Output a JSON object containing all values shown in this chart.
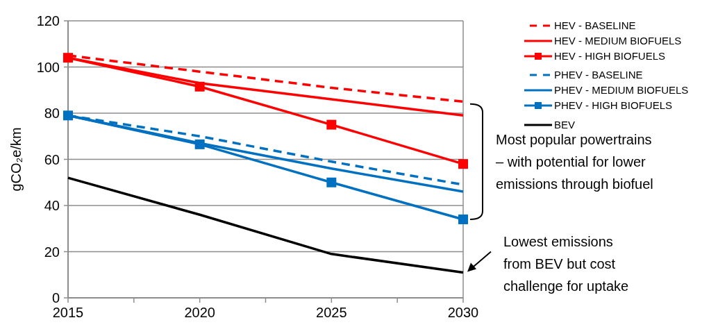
{
  "chart_data": {
    "type": "line",
    "ylabel": "gCO₂e/km",
    "x": [
      2015,
      2020,
      2025,
      2030
    ],
    "xlim": [
      2015,
      2030
    ],
    "xticks": [
      2015,
      {
        "value": 2017.5,
        "label": null
      },
      2020,
      {
        "value": 2022.5,
        "label": null
      },
      2025,
      {
        "value": 2027.5,
        "label": null
      },
      2030
    ],
    "ylim": [
      0,
      120
    ],
    "yticks": [
      0,
      20,
      40,
      60,
      80,
      100,
      120
    ],
    "grid": "y",
    "legend": "top right",
    "series": [
      {
        "name": "HEV - BASELINE",
        "color": "#ff0000",
        "line_style": "dashed",
        "marker": "none",
        "values": [
          105,
          98,
          91,
          85
        ]
      },
      {
        "name": "HEV - MEDIUM BIOFUELS",
        "color": "#ff0000",
        "line_style": "solid",
        "marker": "none",
        "values": [
          104,
          93,
          86,
          79
        ]
      },
      {
        "name": "HEV - HIGH BIOFUELS",
        "color": "#ff0000",
        "line_style": "solid",
        "marker": "square",
        "values": [
          104,
          91.5,
          75,
          58
        ]
      },
      {
        "name": "PHEV - BASELINE",
        "color": "#0070c0",
        "line_style": "dashed",
        "marker": "none",
        "values": [
          79,
          70,
          59,
          49
        ]
      },
      {
        "name": "PHEV - MEDIUM BIOFUELS",
        "color": "#0070c0",
        "line_style": "solid",
        "marker": "none",
        "values": [
          79,
          67,
          56,
          46
        ]
      },
      {
        "name": "PHEV - HIGH BIOFUELS",
        "color": "#0070c0",
        "line_style": "solid",
        "marker": "square",
        "values": [
          79,
          66.5,
          50,
          34
        ]
      },
      {
        "name": "BEV",
        "color": "#000000",
        "line_style": "solid",
        "marker": "none",
        "values": [
          52,
          36,
          19,
          11
        ]
      }
    ],
    "annotations": [
      "Most popular powertrains – with potential for lower emissions through biofuel",
      {
        "text": "Lowest emissions from BEV but cost challenge for uptake",
        "x": 2030,
        "y": 11
      }
    ]
  }
}
